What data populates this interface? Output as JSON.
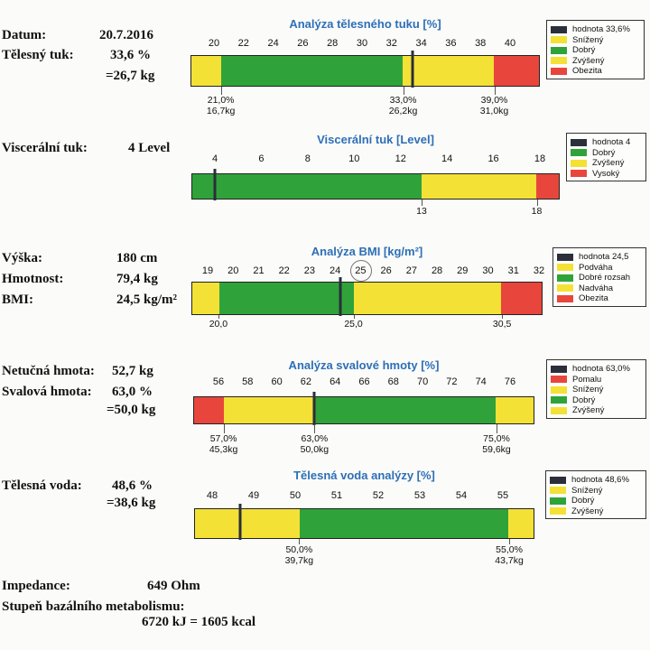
{
  "colors": {
    "marker": "#2a2f3a",
    "red": "#e8463c",
    "yellow": "#f4e136",
    "green": "#2fa33a"
  },
  "info": [
    {
      "label": "Datum:",
      "value": "20.7.2016"
    },
    {
      "label": "Tělesný tuk:",
      "value": "33,6 %"
    },
    {
      "label": "",
      "value": "=26,7 kg"
    },
    {
      "label": "Viscerální tuk:",
      "value": "4 Level"
    },
    {
      "label": "Výška:",
      "value": "180 cm"
    },
    {
      "label": "Hmotnost:",
      "value": "79,4 kg"
    },
    {
      "label": "BMI:",
      "value": "24,5 kg/m²"
    },
    {
      "label": "Netučná hmota:",
      "value": "52,7 kg"
    },
    {
      "label": "Svalová hmota:",
      "value": "63,0 %"
    },
    {
      "label": "",
      "value": "=50,0 kg"
    },
    {
      "label": "Tělesná voda:",
      "value": "48,6 %"
    },
    {
      "label": "",
      "value": "=38,6 kg"
    }
  ],
  "footer": {
    "impedance_label": "Impedance:",
    "impedance_value": "649 Ohm",
    "bmr_label": "Stupeň bazálního metabolismu:",
    "bmr_value": "6720 kJ = 1605 kcal"
  },
  "gauges": [
    {
      "title": "Analýza tělesného tuku [%]",
      "ticks": [
        "20",
        "22",
        "24",
        "26",
        "28",
        "30",
        "32",
        "34",
        "36",
        "38",
        "40"
      ],
      "min": 19,
      "max": 42,
      "segments": [
        {
          "to": 21,
          "color": "yellow"
        },
        {
          "to": 33,
          "color": "green"
        },
        {
          "to": 39,
          "color": "yellow"
        },
        {
          "to": 42,
          "color": "red"
        }
      ],
      "value": 33.6,
      "annotations": [
        {
          "at": 21,
          "lines": [
            "21,0%",
            "16,7kg"
          ]
        },
        {
          "at": 33,
          "lines": [
            "33,0%",
            "26,2kg"
          ]
        },
        {
          "at": 39,
          "lines": [
            "39,0%",
            "31,0kg"
          ]
        }
      ],
      "legend": [
        {
          "color": "marker",
          "text": "hodnota 33,6%"
        },
        {
          "color": "yellow",
          "text": "Snížený"
        },
        {
          "color": "green",
          "text": "Dobrý"
        },
        {
          "color": "yellow",
          "text": "Zvýšený"
        },
        {
          "color": "red",
          "text": "Obezita"
        }
      ]
    },
    {
      "title": "Viscerální tuk [Level]",
      "ticks": [
        "4",
        "6",
        "8",
        "10",
        "12",
        "14",
        "16",
        "18"
      ],
      "min": 3,
      "max": 19,
      "segments": [
        {
          "to": 13,
          "color": "green"
        },
        {
          "to": 18,
          "color": "yellow"
        },
        {
          "to": 19,
          "color": "red"
        }
      ],
      "value": 4,
      "annotations": [
        {
          "at": 13,
          "lines": [
            "13"
          ]
        },
        {
          "at": 18,
          "lines": [
            "18"
          ]
        }
      ],
      "legend": [
        {
          "color": "marker",
          "text": "hodnota 4"
        },
        {
          "color": "green",
          "text": "Dobrý"
        },
        {
          "color": "yellow",
          "text": "Zvýšený"
        },
        {
          "color": "red",
          "text": "Vysoký"
        }
      ]
    },
    {
      "title": "Analýza BMI [kg/m²]",
      "ticks": [
        "19",
        "20",
        "21",
        "22",
        "23",
        "24",
        "25",
        "26",
        "27",
        "28",
        "29",
        "30",
        "31",
        "32"
      ],
      "min": 19,
      "max": 32,
      "segments": [
        {
          "to": 20,
          "color": "yellow"
        },
        {
          "to": 25,
          "color": "green"
        },
        {
          "to": 30.5,
          "color": "yellow"
        },
        {
          "to": 32,
          "color": "red"
        }
      ],
      "value": 24.5,
      "annotations": [
        {
          "at": 20,
          "lines": [
            "20,0"
          ]
        },
        {
          "at": 25,
          "lines": [
            "25,0"
          ]
        },
        {
          "at": 30.5,
          "lines": [
            "30,5"
          ]
        }
      ],
      "legend": [
        {
          "color": "marker",
          "text": "hodnota 24,5"
        },
        {
          "color": "yellow",
          "text": "Podváha"
        },
        {
          "color": "green",
          "text": "Dobré rozsah"
        },
        {
          "color": "yellow",
          "text": "Nadváha"
        },
        {
          "color": "red",
          "text": "Obezita"
        }
      ]
    },
    {
      "title": "Analýza svalové hmoty [%]",
      "ticks": [
        "56",
        "58",
        "60",
        "62",
        "64",
        "66",
        "68",
        "70",
        "72",
        "74",
        "76"
      ],
      "min": 55,
      "max": 77.5,
      "segments": [
        {
          "to": 57,
          "color": "red"
        },
        {
          "to": 63,
          "color": "yellow"
        },
        {
          "to": 75,
          "color": "green"
        },
        {
          "to": 77.5,
          "color": "yellow"
        }
      ],
      "value": 63,
      "annotations": [
        {
          "at": 57,
          "lines": [
            "57,0%",
            "45,3kg"
          ]
        },
        {
          "at": 63,
          "lines": [
            "63,0%",
            "50,0kg"
          ]
        },
        {
          "at": 75,
          "lines": [
            "75,0%",
            "59,6kg"
          ]
        }
      ],
      "legend": [
        {
          "color": "marker",
          "text": "hodnota 63,0%"
        },
        {
          "color": "red",
          "text": "Pomalu"
        },
        {
          "color": "yellow",
          "text": "Snížený"
        },
        {
          "color": "green",
          "text": "Dobrý"
        },
        {
          "color": "yellow",
          "text": "Zvýšený"
        }
      ]
    },
    {
      "title": "Tělesná voda analýzy [%]",
      "ticks": [
        "48",
        "49",
        "50",
        "51",
        "52",
        "53",
        "54",
        "55"
      ],
      "min": 47.5,
      "max": 55.6,
      "segments": [
        {
          "to": 50,
          "color": "yellow"
        },
        {
          "to": 55,
          "color": "green"
        },
        {
          "to": 55.6,
          "color": "yellow"
        }
      ],
      "value": 48.6,
      "annotations": [
        {
          "at": 50,
          "lines": [
            "50,0%",
            "39,7kg"
          ]
        },
        {
          "at": 55,
          "lines": [
            "55,0%",
            "43,7kg"
          ]
        }
      ],
      "legend": [
        {
          "color": "marker",
          "text": "hodnota 48,6%"
        },
        {
          "color": "yellow",
          "text": "Snížený"
        },
        {
          "color": "green",
          "text": "Dobrý"
        },
        {
          "color": "yellow",
          "text": "Zvýšený"
        }
      ]
    }
  ]
}
